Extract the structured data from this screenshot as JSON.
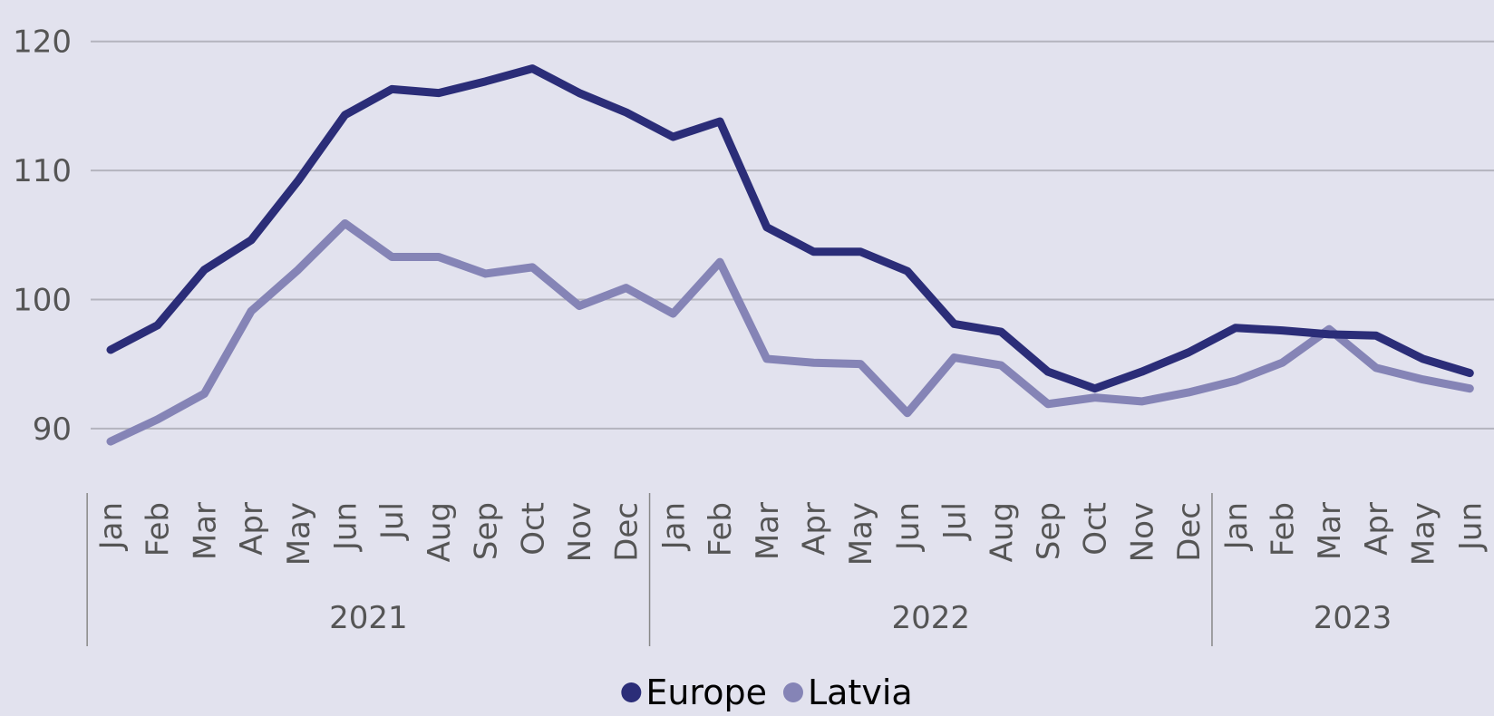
{
  "chart_data": {
    "type": "line",
    "categories": [
      "Jan",
      "Feb",
      "Mar",
      "Apr",
      "May",
      "Jun",
      "Jul",
      "Aug",
      "Sep",
      "Oct",
      "Nov",
      "Dec",
      "Jan",
      "Feb",
      "Mar",
      "Apr",
      "May",
      "Jun",
      "Jul",
      "Aug",
      "Sep",
      "Oct",
      "Nov",
      "Dec",
      "Jan",
      "Feb",
      "Mar",
      "Apr",
      "May",
      "Jun"
    ],
    "years": [
      "2021",
      "2022",
      "2023"
    ],
    "series": [
      {
        "name": "Europe",
        "color": "#2b2d78",
        "values": [
          96.1,
          98.0,
          102.3,
          104.6,
          109.2,
          114.3,
          116.3,
          116.0,
          116.9,
          117.9,
          116.0,
          114.5,
          112.6,
          113.8,
          105.6,
          103.7,
          103.7,
          102.2,
          98.1,
          97.5,
          94.4,
          93.1,
          94.4,
          95.9,
          97.8,
          97.6,
          97.3,
          97.2,
          95.4,
          94.3
        ]
      },
      {
        "name": "Latvia",
        "color": "#8584b6",
        "values": [
          89.0,
          90.7,
          92.7,
          99.1,
          102.3,
          105.9,
          103.3,
          103.3,
          102.0,
          102.5,
          99.5,
          100.9,
          98.9,
          102.9,
          95.4,
          95.1,
          95.0,
          91.2,
          95.5,
          94.9,
          91.9,
          92.4,
          92.1,
          92.8,
          93.7,
          95.1,
          97.7,
          94.7,
          93.8,
          93.1
        ]
      }
    ],
    "ylim": [
      85,
      123
    ],
    "yticks": [
      90,
      100,
      110,
      120
    ],
    "grid": true,
    "legend": "bottom"
  }
}
